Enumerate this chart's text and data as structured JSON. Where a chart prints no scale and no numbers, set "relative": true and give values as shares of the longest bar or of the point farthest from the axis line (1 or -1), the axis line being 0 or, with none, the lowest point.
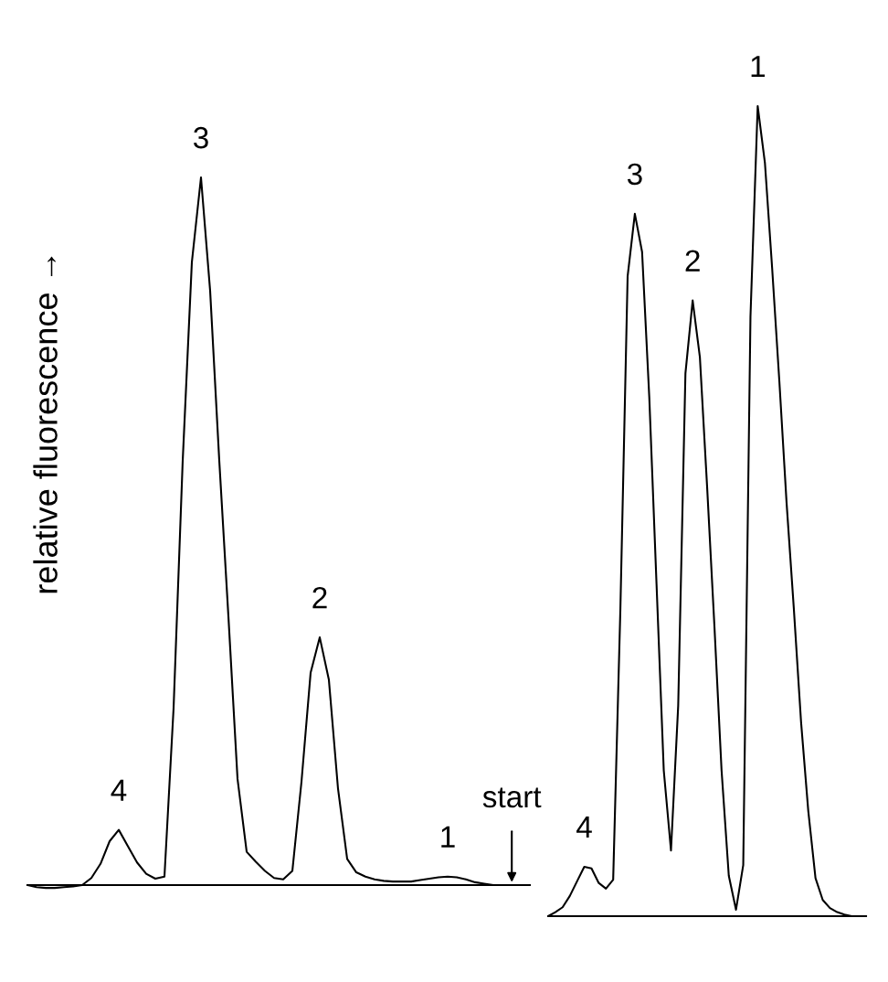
{
  "chart_data": [
    {
      "type": "line",
      "relative": true,
      "ylabel": "relative fluorescence →",
      "color": "#000000",
      "categories": [
        null,
        null,
        null,
        null,
        null,
        null,
        null,
        null,
        null,
        null,
        null,
        null,
        null,
        null,
        null,
        null,
        null,
        null,
        null,
        null,
        null,
        null,
        null,
        null,
        null,
        null,
        null,
        null,
        null,
        null,
        null,
        null,
        null,
        null,
        null,
        null,
        null,
        null,
        null,
        null,
        null,
        null,
        null,
        null,
        null,
        null,
        null,
        null,
        null,
        null,
        null,
        null,
        null,
        null,
        null,
        null
      ],
      "values": [
        0,
        -0.003,
        -0.004,
        -0.004,
        -0.003,
        -0.002,
        0,
        0.01,
        0.03,
        0.062,
        0.078,
        0.055,
        0.032,
        0.016,
        0.009,
        0.012,
        0.25,
        0.6,
        0.88,
        1,
        0.84,
        0.6,
        0.38,
        0.15,
        0.047,
        0.033,
        0.02,
        0.01,
        0.008,
        0.02,
        0.146,
        0.3,
        0.35,
        0.29,
        0.136,
        0.037,
        0.018,
        0.012,
        0.008,
        0.006,
        0.005,
        0.005,
        0.005,
        0.007,
        0.009,
        0.011,
        0.012,
        0.011,
        0.008,
        0.004,
        0.002,
        0,
        0,
        0,
        0,
        0
      ],
      "annotations": [
        "4",
        "3",
        "2",
        "1",
        "start"
      ]
    },
    {
      "type": "line",
      "relative": true,
      "color": "#000000",
      "categories": [
        null,
        null,
        null,
        null,
        null,
        null,
        null,
        null,
        null,
        null,
        null,
        null,
        null,
        null,
        null,
        null,
        null,
        null,
        null,
        null,
        null,
        null,
        null,
        null,
        null,
        null,
        null,
        null,
        null,
        null,
        null,
        null,
        null,
        null,
        null,
        null,
        null,
        null,
        null,
        null,
        null,
        null,
        null,
        null,
        null
      ],
      "values": [
        0,
        0.005,
        0.011,
        0.025,
        0.043,
        0.061,
        0.059,
        0.041,
        0.034,
        0.045,
        0.38,
        0.79,
        0.867,
        0.82,
        0.64,
        0.41,
        0.18,
        0.081,
        0.26,
        0.67,
        0.76,
        0.69,
        0.53,
        0.36,
        0.18,
        0.05,
        0.008,
        0.063,
        0.74,
        1,
        0.93,
        0.8,
        0.66,
        0.51,
        0.38,
        0.24,
        0.13,
        0.047,
        0.02,
        0.01,
        0.005,
        0.002,
        0,
        0,
        0
      ],
      "annotations": [
        "4",
        "3",
        "2",
        "1"
      ]
    }
  ]
}
